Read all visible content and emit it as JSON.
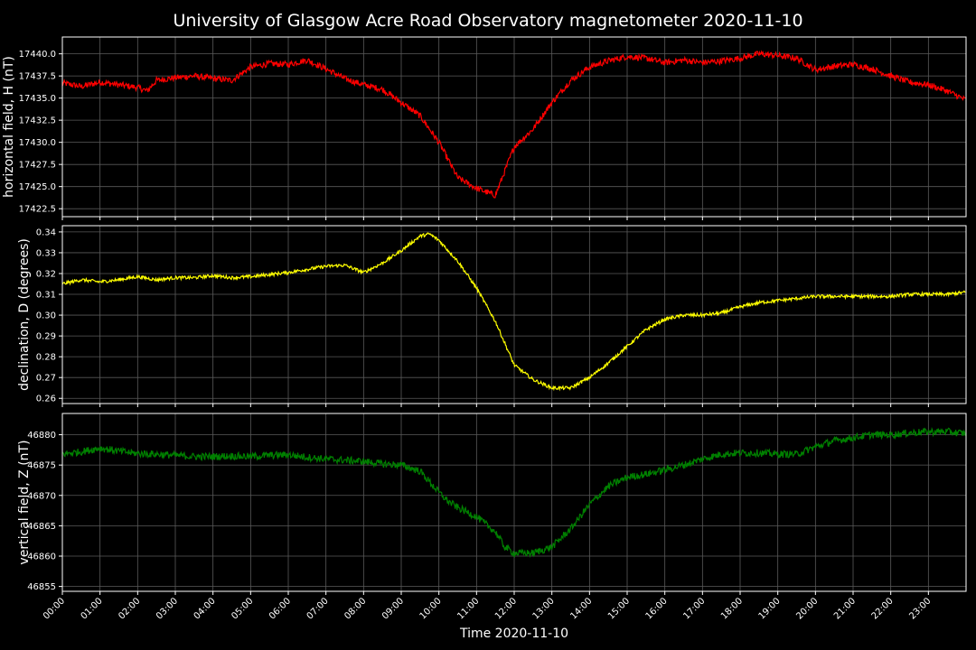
{
  "chart_data": {
    "type": "line",
    "title": "University of Glasgow Acre Road Observatory magnetometer 2020-11-10",
    "xlabel": "Time 2020-11-10",
    "x_range": [
      "00:00",
      "24:00"
    ],
    "x_ticks": [
      "00:00",
      "01:00",
      "02:00",
      "03:00",
      "04:00",
      "05:00",
      "06:00",
      "07:00",
      "08:00",
      "09:00",
      "10:00",
      "11:00",
      "12:00",
      "13:00",
      "14:00",
      "15:00",
      "16:00",
      "17:00",
      "18:00",
      "19:00",
      "20:00",
      "21:00",
      "22:00",
      "23:00"
    ],
    "grid": true,
    "background": "#000000",
    "grid_color": "#5a5a5a",
    "panels": [
      {
        "ylabel": "horizontal field, H (nT)",
        "color": "#ff0000",
        "ylim": [
          17421.6,
          17441.9
        ],
        "yticks": [
          17422.5,
          17425.0,
          17427.5,
          17430.0,
          17432.5,
          17435.0,
          17437.5,
          17440.0
        ],
        "tick_decimals": 1,
        "noise": 0.35,
        "x": [
          "00:00",
          "00:30",
          "01:00",
          "01:30",
          "02:00",
          "02:15",
          "02:30",
          "03:00",
          "03:30",
          "04:00",
          "04:30",
          "05:00",
          "05:30",
          "06:00",
          "06:30",
          "07:00",
          "07:30",
          "08:00",
          "08:30",
          "09:00",
          "09:30",
          "10:00",
          "10:30",
          "11:00",
          "11:30",
          "12:00",
          "12:30",
          "13:00",
          "13:30",
          "14:00",
          "14:30",
          "15:00",
          "15:30",
          "16:00",
          "16:30",
          "17:00",
          "17:30",
          "18:00",
          "18:30",
          "19:00",
          "19:30",
          "20:00",
          "20:30",
          "21:00",
          "21:30",
          "22:00",
          "22:30",
          "23:00",
          "23:30",
          "23:59"
        ],
        "values": [
          17436.7,
          17436.3,
          17436.8,
          17436.5,
          17436.2,
          17435.8,
          17437.0,
          17437.3,
          17437.5,
          17437.2,
          17437.0,
          17438.5,
          17438.9,
          17438.8,
          17439.3,
          17438.3,
          17437.2,
          17436.5,
          17436.0,
          17434.5,
          17433.0,
          17430.0,
          17426.0,
          17424.8,
          17424.0,
          17429.5,
          17431.5,
          17434.5,
          17437.0,
          17438.5,
          17439.2,
          17439.7,
          17439.5,
          17439.0,
          17439.3,
          17439.0,
          17439.2,
          17439.5,
          17440.0,
          17439.8,
          17439.5,
          17438.2,
          17438.6,
          17438.8,
          17438.3,
          17437.5,
          17436.8,
          17436.5,
          17435.8,
          17434.8
        ]
      },
      {
        "ylabel": "declination, D (degrees)",
        "color": "#ffff00",
        "ylim": [
          0.2575,
          0.343
        ],
        "yticks": [
          0.26,
          0.27,
          0.28,
          0.29,
          0.3,
          0.31,
          0.32,
          0.33,
          0.34
        ],
        "tick_decimals": 2,
        "noise": 0.0008,
        "x": [
          "00:00",
          "00:30",
          "01:00",
          "01:30",
          "02:00",
          "02:30",
          "03:00",
          "03:30",
          "04:00",
          "04:30",
          "05:00",
          "05:30",
          "06:00",
          "06:30",
          "07:00",
          "07:30",
          "08:00",
          "08:30",
          "09:00",
          "09:30",
          "09:45",
          "10:00",
          "10:30",
          "11:00",
          "11:30",
          "12:00",
          "12:30",
          "13:00",
          "13:30",
          "14:00",
          "14:30",
          "15:00",
          "15:30",
          "16:00",
          "16:30",
          "17:00",
          "17:30",
          "18:00",
          "18:30",
          "19:00",
          "19:30",
          "20:00",
          "20:30",
          "21:00",
          "21:30",
          "22:00",
          "22:30",
          "23:00",
          "23:30",
          "23:59"
        ],
        "values": [
          0.315,
          0.317,
          0.316,
          0.317,
          0.3185,
          0.317,
          0.318,
          0.318,
          0.319,
          0.318,
          0.3185,
          0.3195,
          0.3205,
          0.322,
          0.3235,
          0.324,
          0.3205,
          0.325,
          0.331,
          0.338,
          0.339,
          0.336,
          0.326,
          0.313,
          0.297,
          0.276,
          0.269,
          0.265,
          0.265,
          0.27,
          0.277,
          0.285,
          0.293,
          0.298,
          0.3,
          0.3,
          0.301,
          0.304,
          0.306,
          0.307,
          0.308,
          0.309,
          0.309,
          0.309,
          0.309,
          0.309,
          0.31,
          0.31,
          0.31,
          0.311
        ]
      },
      {
        "ylabel": "vertical field, Z (nT)",
        "color": "#008000",
        "ylim": [
          46854.2,
          46883.5
        ],
        "yticks": [
          46855,
          46860,
          46865,
          46870,
          46875,
          46880
        ],
        "tick_decimals": 0,
        "noise": 0.6,
        "x": [
          "00:00",
          "00:30",
          "01:00",
          "01:30",
          "02:00",
          "02:30",
          "03:00",
          "03:30",
          "04:00",
          "04:30",
          "05:00",
          "05:30",
          "06:00",
          "06:30",
          "07:00",
          "07:30",
          "08:00",
          "08:30",
          "09:00",
          "09:30",
          "10:00",
          "10:15",
          "10:30",
          "11:00",
          "11:30",
          "11:45",
          "12:00",
          "12:30",
          "13:00",
          "13:30",
          "14:00",
          "14:30",
          "15:00",
          "15:30",
          "16:00",
          "16:30",
          "17:00",
          "17:30",
          "18:00",
          "18:30",
          "19:00",
          "19:30",
          "20:00",
          "20:30",
          "21:00",
          "21:30",
          "22:00",
          "22:30",
          "23:00",
          "23:30",
          "23:59"
        ],
        "values": [
          46876.8,
          46877.2,
          46877.8,
          46877.3,
          46876.9,
          46876.8,
          46876.6,
          46876.4,
          46876.4,
          46876.5,
          46876.4,
          46876.6,
          46876.7,
          46876.3,
          46876.0,
          46875.8,
          46875.6,
          46875.2,
          46875.0,
          46874.0,
          46870.5,
          46869.0,
          46868.0,
          46866.5,
          46864.0,
          46861.5,
          46860.5,
          46860.5,
          46861.5,
          46864.5,
          46868.5,
          46871.5,
          46873.0,
          46873.5,
          46874.2,
          46875.0,
          46876.0,
          46876.8,
          46877.0,
          46877.0,
          46876.8,
          46876.8,
          46878.0,
          46879.0,
          46879.5,
          46880.0,
          46880.0,
          46880.3,
          46880.5,
          46880.5,
          46880.2
        ]
      }
    ]
  }
}
